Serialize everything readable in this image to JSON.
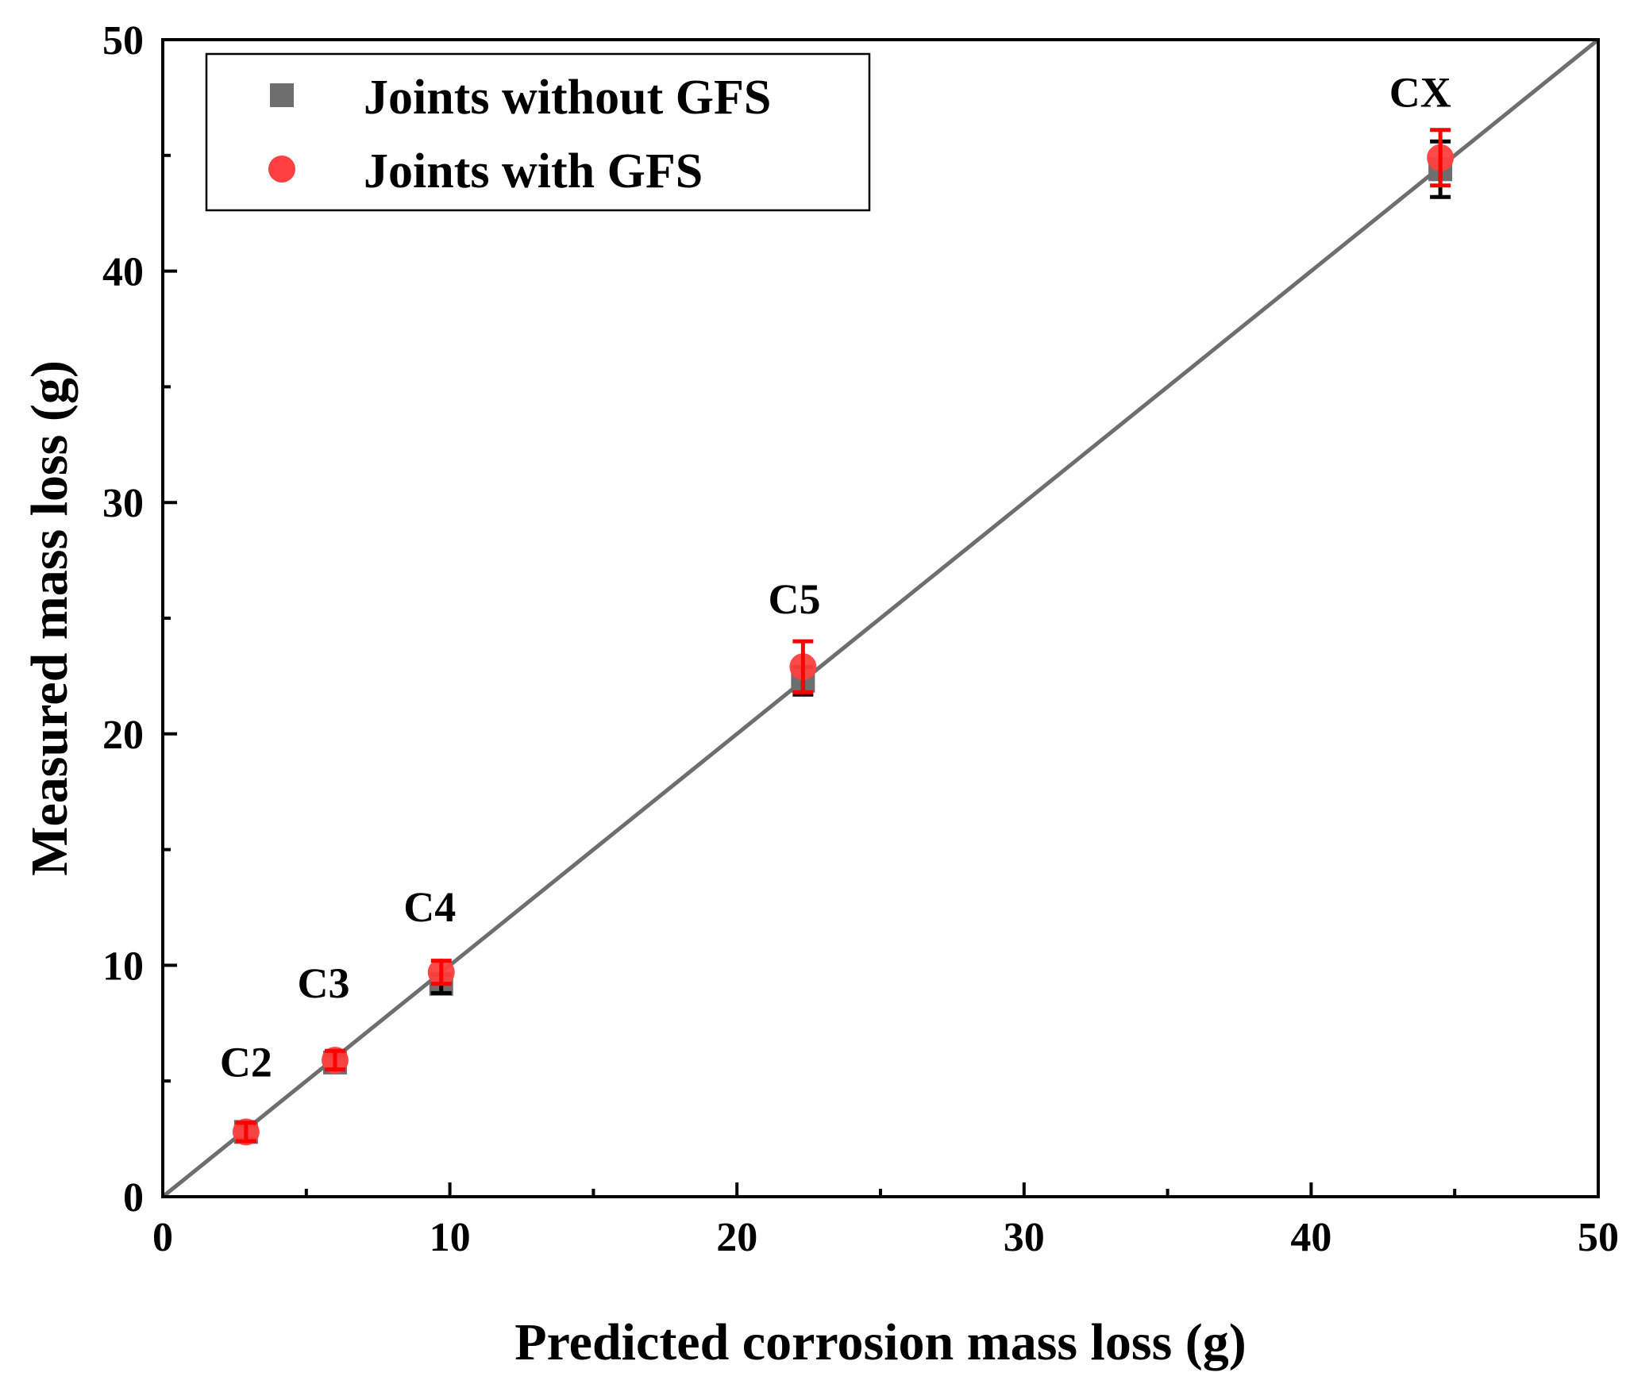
{
  "chart_data": {
    "type": "scatter",
    "title": "",
    "xlabel": "Predicted corrosion mass loss (g)",
    "ylabel": "Measured mass loss (g)",
    "xlim": [
      0,
      50
    ],
    "ylim": [
      0,
      50
    ],
    "xticks": [
      "0",
      "10",
      "20",
      "30",
      "40",
      "50"
    ],
    "yticks": [
      "0",
      "10",
      "20",
      "30",
      "40",
      "50"
    ],
    "legend_position": "top-left",
    "reference_line": {
      "name": "y = x",
      "from": [
        0,
        0
      ],
      "to": [
        50,
        50
      ],
      "color": "#6e6e6e"
    },
    "series": [
      {
        "name": "Joints without GFS",
        "marker": "square",
        "color": "#6e6e6e",
        "errorbar_color": "#000000",
        "points": [
          {
            "x": 2.9,
            "y": 2.8,
            "err": 0.3
          },
          {
            "x": 6.0,
            "y": 5.8,
            "err": 0.3
          },
          {
            "x": 9.7,
            "y": 9.2,
            "err": 0.4
          },
          {
            "x": 22.3,
            "y": 22.3,
            "err": 0.6
          },
          {
            "x": 44.5,
            "y": 44.4,
            "err": 1.2
          }
        ]
      },
      {
        "name": "Joints with GFS",
        "marker": "circle",
        "color": "#ff4040",
        "errorbar_color": "#ff0000",
        "points": [
          {
            "x": 2.9,
            "y": 2.8,
            "err": 0.4
          },
          {
            "x": 6.0,
            "y": 5.9,
            "err": 0.4
          },
          {
            "x": 9.7,
            "y": 9.7,
            "err": 0.5
          },
          {
            "x": 22.3,
            "y": 22.9,
            "err": 1.1
          },
          {
            "x": 44.5,
            "y": 44.9,
            "err": 1.2
          }
        ]
      }
    ],
    "annotations": [
      {
        "text": "C2",
        "x": 2.9,
        "y": 5.2
      },
      {
        "text": "C3",
        "x": 5.6,
        "y": 8.6
      },
      {
        "text": "C4",
        "x": 9.3,
        "y": 11.9
      },
      {
        "text": "C5",
        "x": 22.0,
        "y": 25.2
      },
      {
        "text": "CX",
        "x": 43.8,
        "y": 47.1
      }
    ]
  }
}
